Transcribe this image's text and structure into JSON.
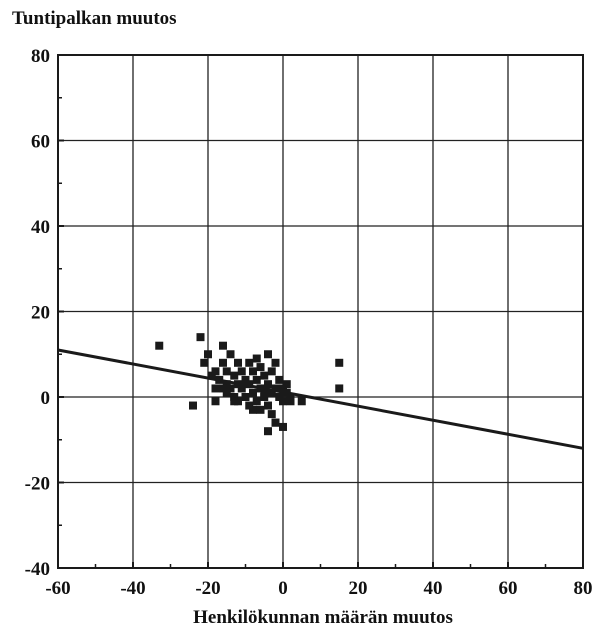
{
  "chart_data": {
    "type": "scatter",
    "title": "",
    "ylabel": "Tuntipalkan muutos",
    "xlabel": "Henkilökunnan määrän muutos",
    "xlim": [
      -60,
      80
    ],
    "ylim": [
      -40,
      80
    ],
    "x_ticks": [
      -60,
      -40,
      -20,
      0,
      20,
      40,
      60,
      80
    ],
    "y_ticks": [
      -40,
      -20,
      0,
      20,
      40,
      60,
      80
    ],
    "x_tick_labels": [
      "-60",
      "-40",
      "-20",
      "0",
      "20",
      "40",
      "60",
      "80"
    ],
    "y_tick_labels": [
      "-40",
      "-20",
      "0",
      "20",
      "40",
      "60",
      "80"
    ],
    "grid": true,
    "colors": {
      "marker": "#1a1a1a",
      "line": "#1a1a1a",
      "grid": "#222222"
    },
    "series": [
      {
        "type": "scatter",
        "marker": "square",
        "points": [
          [
            -33,
            12
          ],
          [
            -22,
            14
          ],
          [
            -24,
            -2
          ],
          [
            -21,
            8
          ],
          [
            -20,
            10
          ],
          [
            -19,
            5
          ],
          [
            -18,
            6
          ],
          [
            -18,
            2
          ],
          [
            -18,
            -1
          ],
          [
            -17,
            4
          ],
          [
            -16,
            12
          ],
          [
            -16,
            8
          ],
          [
            -15,
            3
          ],
          [
            -15,
            1
          ],
          [
            -15,
            6
          ],
          [
            -14,
            10
          ],
          [
            -14,
            2
          ],
          [
            -13,
            5
          ],
          [
            -13,
            0
          ],
          [
            -12,
            8
          ],
          [
            -12,
            3
          ],
          [
            -12,
            -1
          ],
          [
            -11,
            6
          ],
          [
            -11,
            2
          ],
          [
            -10,
            4
          ],
          [
            -10,
            0
          ],
          [
            -9,
            8
          ],
          [
            -9,
            3
          ],
          [
            -9,
            -2
          ],
          [
            -8,
            6
          ],
          [
            -8,
            1
          ],
          [
            -7,
            9
          ],
          [
            -7,
            4
          ],
          [
            -7,
            -1
          ],
          [
            -6,
            7
          ],
          [
            -6,
            2
          ],
          [
            -6,
            -3
          ],
          [
            -5,
            5
          ],
          [
            -5,
            0
          ],
          [
            -4,
            10
          ],
          [
            -4,
            3
          ],
          [
            -4,
            -2
          ],
          [
            -3,
            6
          ],
          [
            -3,
            1
          ],
          [
            -3,
            -4
          ],
          [
            -2,
            8
          ],
          [
            -2,
            2
          ],
          [
            -2,
            -6
          ],
          [
            -1,
            4
          ],
          [
            -1,
            0
          ],
          [
            0,
            2
          ],
          [
            0,
            -1
          ],
          [
            1,
            3
          ],
          [
            -4,
            -8
          ],
          [
            -2,
            -6
          ],
          [
            0,
            -7
          ],
          [
            1,
            1
          ],
          [
            2,
            0
          ],
          [
            2,
            -1
          ],
          [
            5,
            -1
          ],
          [
            -5,
            1
          ],
          [
            -8,
            -3
          ],
          [
            -13,
            -1
          ],
          [
            -16,
            2
          ],
          [
            15,
            8
          ],
          [
            15,
            2
          ]
        ]
      },
      {
        "type": "line",
        "points": [
          [
            -60,
            11
          ],
          [
            80,
            -12
          ]
        ]
      }
    ]
  }
}
